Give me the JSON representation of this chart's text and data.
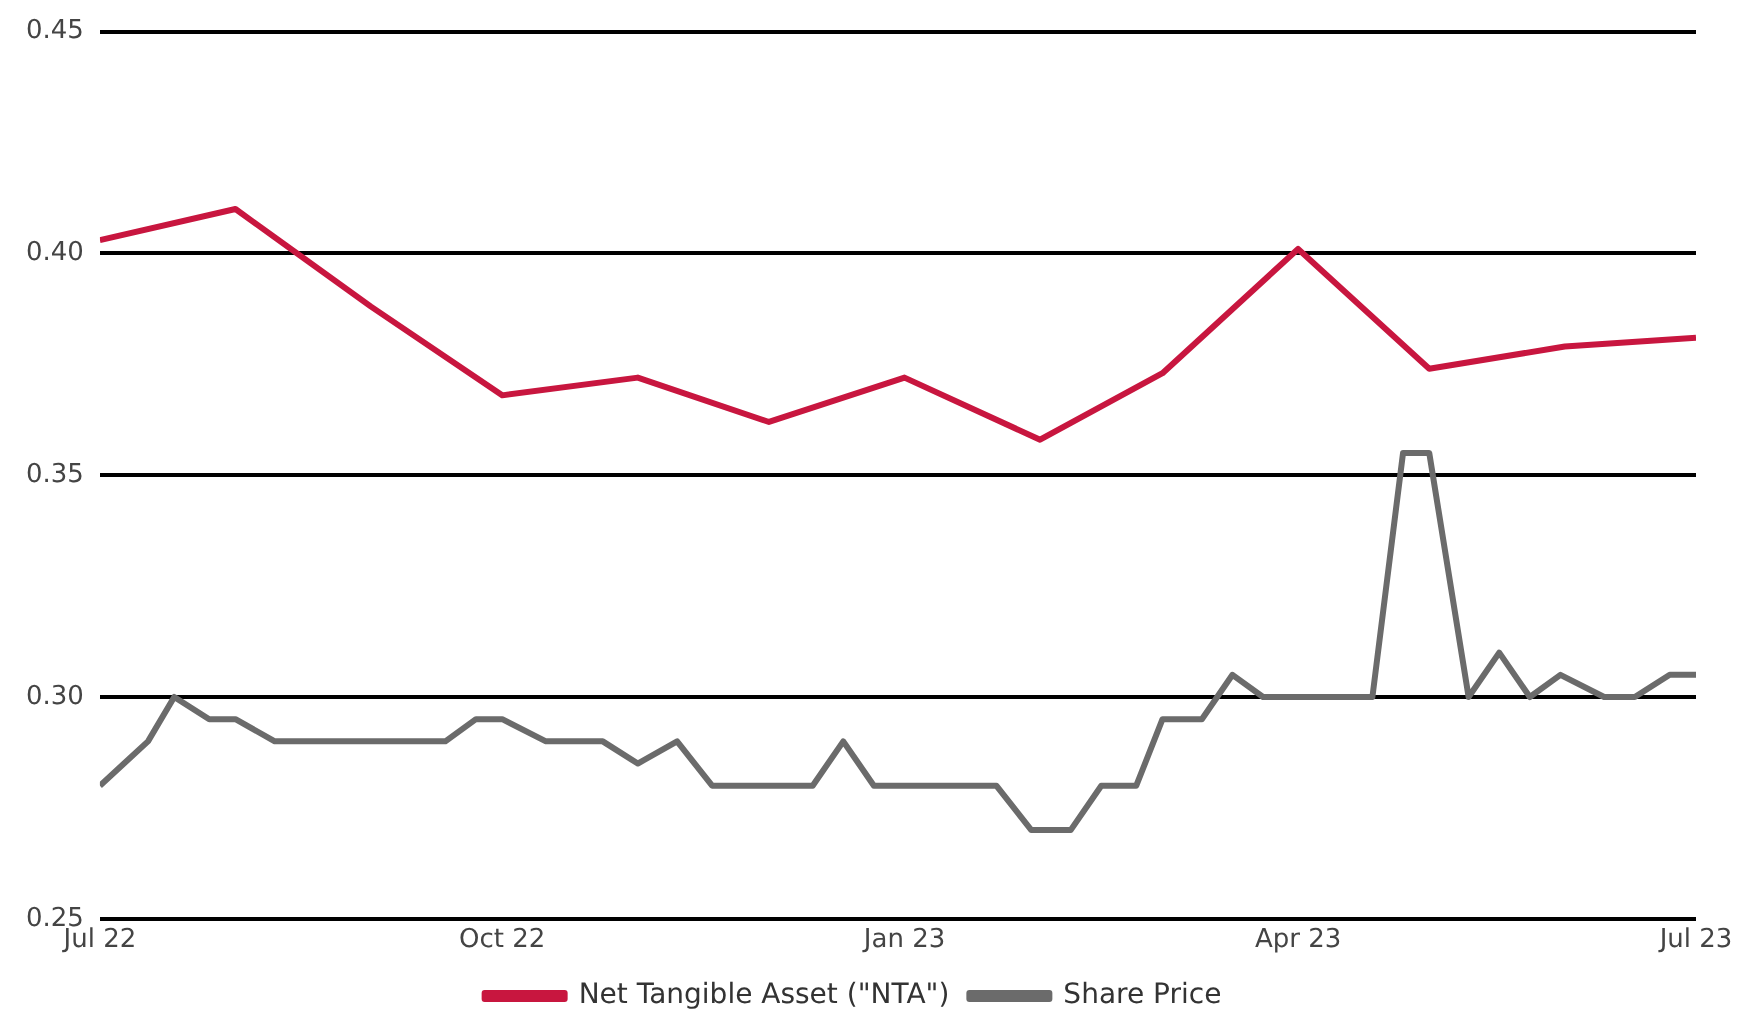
{
  "chart_data": {
    "type": "line",
    "xlim": [
      "2022-07-01",
      "2023-07-01"
    ],
    "xticks": [
      {
        "value": "2022-07-01",
        "label": "Jul 22"
      },
      {
        "value": "2022-10-01",
        "label": "Oct 22"
      },
      {
        "value": "2023-01-01",
        "label": "Jan 23"
      },
      {
        "value": "2023-04-01",
        "label": "Apr 23"
      },
      {
        "value": "2023-07-01",
        "label": "Jul 23"
      }
    ],
    "ylim": [
      0.25,
      0.45
    ],
    "yticks": [
      {
        "value": 0.25,
        "label": "0.25"
      },
      {
        "value": 0.3,
        "label": "0.30"
      },
      {
        "value": 0.35,
        "label": "0.35"
      },
      {
        "value": 0.4,
        "label": "0.40"
      },
      {
        "value": 0.45,
        "label": "0.45"
      }
    ],
    "grid": "y",
    "legend": "bottom",
    "marker": "none",
    "line_style": "solid",
    "series": [
      {
        "name": "Net Tangible Asset (\"NTA\")",
        "color": "#c8163f",
        "x": [
          "2022-07-01",
          "2022-08-01",
          "2022-09-01",
          "2022-10-01",
          "2022-11-01",
          "2022-12-01",
          "2023-01-01",
          "2023-02-01",
          "2023-03-01",
          "2023-04-01",
          "2023-05-01",
          "2023-06-01",
          "2023-07-01"
        ],
        "values": [
          0.403,
          0.41,
          0.388,
          0.368,
          0.372,
          0.362,
          0.372,
          0.358,
          0.373,
          0.401,
          0.374,
          0.379,
          0.381
        ]
      },
      {
        "name": "Share Price",
        "color": "#6b6b6b",
        "x": [
          "2022-07-01",
          "2022-07-12",
          "2022-07-18",
          "2022-07-26",
          "2022-08-01",
          "2022-08-10",
          "2022-09-18",
          "2022-09-25",
          "2022-10-01",
          "2022-10-11",
          "2022-10-24",
          "2022-11-01",
          "2022-11-10",
          "2022-11-18",
          "2022-12-11",
          "2022-12-18",
          "2022-12-25",
          "2023-01-22",
          "2023-01-30",
          "2023-02-08",
          "2023-02-15",
          "2023-02-23",
          "2023-03-01",
          "2023-03-10",
          "2023-03-17",
          "2023-03-24",
          "2023-04-18",
          "2023-04-25",
          "2023-05-01",
          "2023-05-10",
          "2023-05-17",
          "2023-05-24",
          "2023-05-31",
          "2023-06-10",
          "2023-06-17",
          "2023-06-25",
          "2023-07-01"
        ],
        "values": [
          0.28,
          0.29,
          0.3,
          0.295,
          0.295,
          0.29,
          0.29,
          0.295,
          0.295,
          0.29,
          0.29,
          0.285,
          0.29,
          0.28,
          0.28,
          0.29,
          0.28,
          0.28,
          0.27,
          0.27,
          0.28,
          0.28,
          0.295,
          0.295,
          0.305,
          0.3,
          0.3,
          0.355,
          0.355,
          0.3,
          0.31,
          0.3,
          0.305,
          0.3,
          0.3,
          0.305,
          0.305
        ]
      }
    ]
  }
}
